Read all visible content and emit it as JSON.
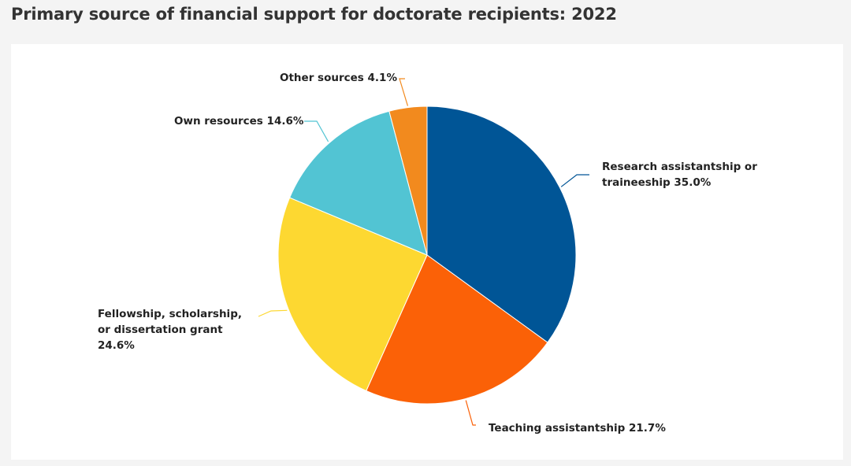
{
  "title": "Primary source of financial support for doctorate recipients: 2022",
  "chart_data": {
    "type": "pie",
    "title": "Primary source of financial support for doctorate recipients: 2022",
    "slices": [
      {
        "label": "Research assistantship or traineeship 35.0%",
        "value": 35.0,
        "color": "#005596"
      },
      {
        "label": "Teaching assistantship 21.7%",
        "value": 21.7,
        "color": "#fb6107"
      },
      {
        "label": "Fellowship, scholarship, or dissertation grant 24.6%",
        "value": 24.6,
        "color": "#fdd831"
      },
      {
        "label": "Own resources 14.6%",
        "value": 14.6,
        "color": "#52c4d3"
      },
      {
        "label": "Other sources 4.1%",
        "value": 4.1,
        "color": "#f28a1e"
      }
    ]
  }
}
